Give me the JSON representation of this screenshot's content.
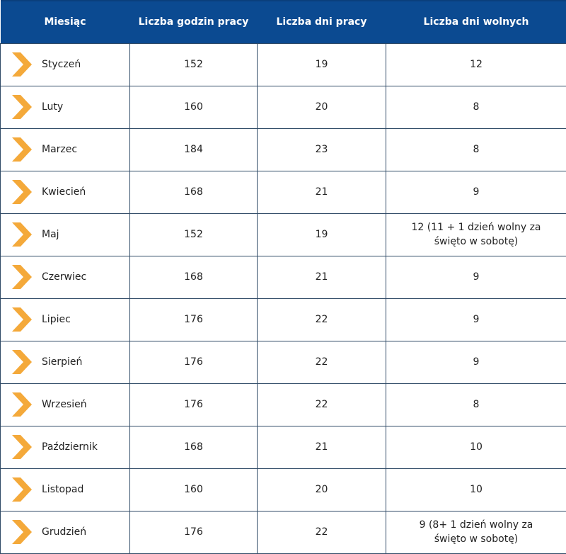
{
  "headers": [
    "Miesiąc",
    "Liczba godzin pracy",
    "Liczba dni pracy",
    "Liczba dni wolnych"
  ],
  "accent": "#f4a93a",
  "rows": [
    {
      "month": "Styczeń",
      "hours": "152",
      "work_days": "19",
      "free_days": "12"
    },
    {
      "month": "Luty",
      "hours": "160",
      "work_days": "20",
      "free_days": "8"
    },
    {
      "month": "Marzec",
      "hours": "184",
      "work_days": "23",
      "free_days": "8"
    },
    {
      "month": "Kwiecień",
      "hours": "168",
      "work_days": "21",
      "free_days": "9"
    },
    {
      "month": "Maj",
      "hours": "152",
      "work_days": "19",
      "free_days": "12 (11 + 1 dzień wolny za święto w sobotę)"
    },
    {
      "month": "Czerwiec",
      "hours": "168",
      "work_days": "21",
      "free_days": "9"
    },
    {
      "month": "Lipiec",
      "hours": "176",
      "work_days": "22",
      "free_days": "9"
    },
    {
      "month": "Sierpień",
      "hours": "176",
      "work_days": "22",
      "free_days": "9"
    },
    {
      "month": "Wrzesień",
      "hours": "176",
      "work_days": "22",
      "free_days": "8"
    },
    {
      "month": "Październik",
      "hours": "168",
      "work_days": "21",
      "free_days": "10"
    },
    {
      "month": "Listopad",
      "hours": "160",
      "work_days": "20",
      "free_days": "10"
    },
    {
      "month": "Grudzień",
      "hours": "176",
      "work_days": "22",
      "free_days": "9 (8+ 1 dzień wolny za święto w sobotę)"
    }
  ]
}
